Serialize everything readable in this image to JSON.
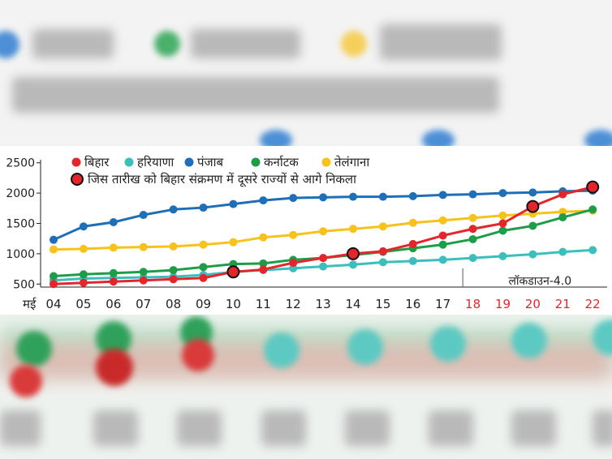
{
  "chart_data": {
    "type": "line",
    "x_prefix": "मई",
    "categories": [
      "04",
      "05",
      "06",
      "07",
      "08",
      "09",
      "10",
      "11",
      "12",
      "13",
      "14",
      "15",
      "16",
      "17",
      "18",
      "19",
      "20",
      "21",
      "22"
    ],
    "ylim": [
      450,
      2550
    ],
    "yticks": [
      500,
      1000,
      1500,
      2000,
      2500
    ],
    "grid": false,
    "legend_position": "top",
    "series": [
      {
        "name": "बिहार",
        "color": "#e4262c",
        "values": [
          500,
          520,
          540,
          560,
          580,
          600,
          700,
          740,
          850,
          930,
          1000,
          1040,
          1160,
          1300,
          1410,
          1500,
          1780,
          1980,
          2100
        ]
      },
      {
        "name": "हरियाणा",
        "color": "#3cbfbc",
        "values": [
          560,
          590,
          600,
          610,
          620,
          650,
          700,
          730,
          760,
          790,
          820,
          860,
          880,
          900,
          930,
          960,
          990,
          1030,
          1060
        ]
      },
      {
        "name": "पंजाब",
        "color": "#1e6fb8",
        "values": [
          1230,
          1450,
          1520,
          1640,
          1730,
          1760,
          1820,
          1880,
          1920,
          1930,
          1940,
          1940,
          1950,
          1970,
          1980,
          2000,
          2010,
          2030,
          2040
        ]
      },
      {
        "name": "कर्नाटक",
        "color": "#1e9d48",
        "values": [
          630,
          660,
          680,
          700,
          730,
          780,
          830,
          840,
          900,
          930,
          980,
          1030,
          1090,
          1150,
          1240,
          1380,
          1460,
          1600,
          1730
        ]
      },
      {
        "name": "तेलंगाना",
        "color": "#f6c21b",
        "values": [
          1070,
          1080,
          1100,
          1110,
          1120,
          1150,
          1190,
          1270,
          1310,
          1370,
          1410,
          1450,
          1510,
          1550,
          1590,
          1630,
          1660,
          1690,
          1710
        ]
      }
    ],
    "overtake_legend": "जिस तारीख को बिहार संक्रमण में दूसरे राज्यों से आगे निकला",
    "overtake_indices": [
      6,
      10,
      16,
      18
    ],
    "overtake_color": "#e4262c",
    "lockdown_label": "लॉकडाउन-4.0",
    "lockdown_start_index": 14,
    "lockdown_color": "#e4262c",
    "axis_label_color": "#222222"
  }
}
